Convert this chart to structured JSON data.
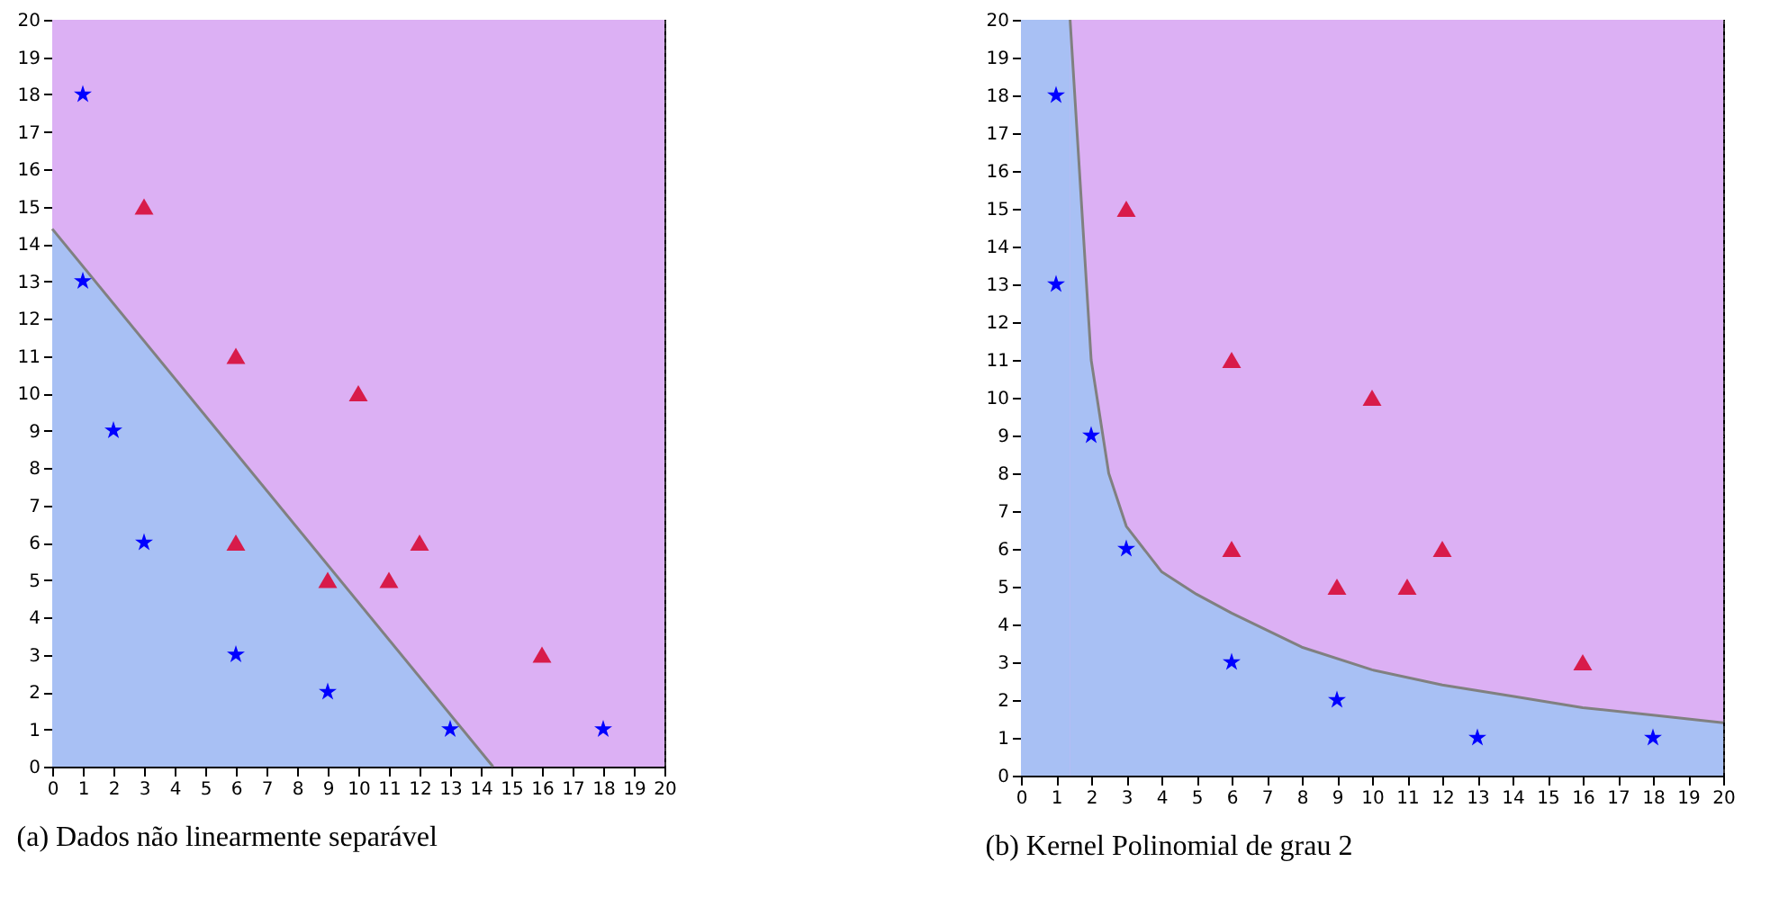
{
  "chart_data": [
    {
      "type": "scatter",
      "title": "(a) Dados não linearmente separável",
      "xlim": [
        0,
        20
      ],
      "ylim": [
        0,
        20
      ],
      "xticks": [
        0,
        1,
        2,
        3,
        4,
        5,
        6,
        7,
        8,
        9,
        10,
        11,
        12,
        13,
        14,
        15,
        16,
        17,
        18,
        19,
        20
      ],
      "yticks": [
        0,
        1,
        2,
        3,
        4,
        5,
        6,
        7,
        8,
        9,
        10,
        11,
        12,
        13,
        14,
        15,
        16,
        17,
        18,
        19,
        20
      ],
      "grid": true,
      "bands": [
        {
          "axis": "y",
          "from": 0,
          "to": 20,
          "color": "#dcb0f4"
        }
      ],
      "series": [
        {
          "type": "area",
          "color": "#a8c0f4",
          "x": [
            0,
            14.4
          ],
          "values": [
            14.4,
            0
          ]
        },
        {
          "type": "scatter",
          "color": "#0000ff",
          "marker": "star",
          "x": [
            1,
            1,
            2,
            3,
            6,
            9,
            13,
            18
          ],
          "values": [
            18,
            13,
            9,
            6,
            3,
            2,
            1,
            1
          ]
        },
        {
          "type": "scatter",
          "color": "#d81b4a",
          "marker": "triangle",
          "x": [
            3,
            6,
            10,
            6,
            9,
            11,
            12,
            16
          ],
          "values": [
            15,
            11,
            10,
            6,
            5,
            5,
            6,
            3
          ]
        }
      ]
    },
    {
      "type": "scatter",
      "title": "(b) Kernel Polinomial de grau 2",
      "xlim": [
        0,
        20
      ],
      "ylim": [
        0,
        20
      ],
      "xticks": [
        0,
        1,
        2,
        3,
        4,
        5,
        6,
        7,
        8,
        9,
        10,
        11,
        12,
        13,
        14,
        15,
        16,
        17,
        18,
        19,
        20
      ],
      "yticks": [
        0,
        1,
        2,
        3,
        4,
        5,
        6,
        7,
        8,
        9,
        10,
        11,
        12,
        13,
        14,
        15,
        16,
        17,
        18,
        19,
        20
      ],
      "grid": true,
      "bands": [
        {
          "axis": "y",
          "from": 0,
          "to": 20,
          "color": "#dcb0f4"
        },
        {
          "axis": "x",
          "from": 0,
          "to": 1.4,
          "color": "#a8c0f4"
        }
      ],
      "series": [
        {
          "type": "area",
          "color": "#a8c0f4",
          "x": [
            1.4,
            1.6,
            1.8,
            2,
            2.5,
            3,
            4,
            5,
            6,
            8,
            10,
            12,
            14,
            16,
            18,
            20
          ],
          "values": [
            20,
            17,
            14,
            11,
            8,
            6.6,
            5.4,
            4.8,
            4.3,
            3.4,
            2.8,
            2.4,
            2.1,
            1.8,
            1.6,
            1.4
          ]
        },
        {
          "type": "scatter",
          "color": "#0000ff",
          "marker": "star",
          "x": [
            1,
            1,
            2,
            3,
            6,
            9,
            13,
            18
          ],
          "values": [
            18,
            13,
            9,
            6,
            3,
            2,
            1,
            1
          ]
        },
        {
          "type": "scatter",
          "color": "#d81b4a",
          "marker": "triangle",
          "x": [
            3,
            6,
            10,
            6,
            9,
            11,
            12,
            16
          ],
          "values": [
            15,
            11,
            10,
            6,
            5,
            5,
            6,
            3
          ]
        }
      ]
    }
  ]
}
